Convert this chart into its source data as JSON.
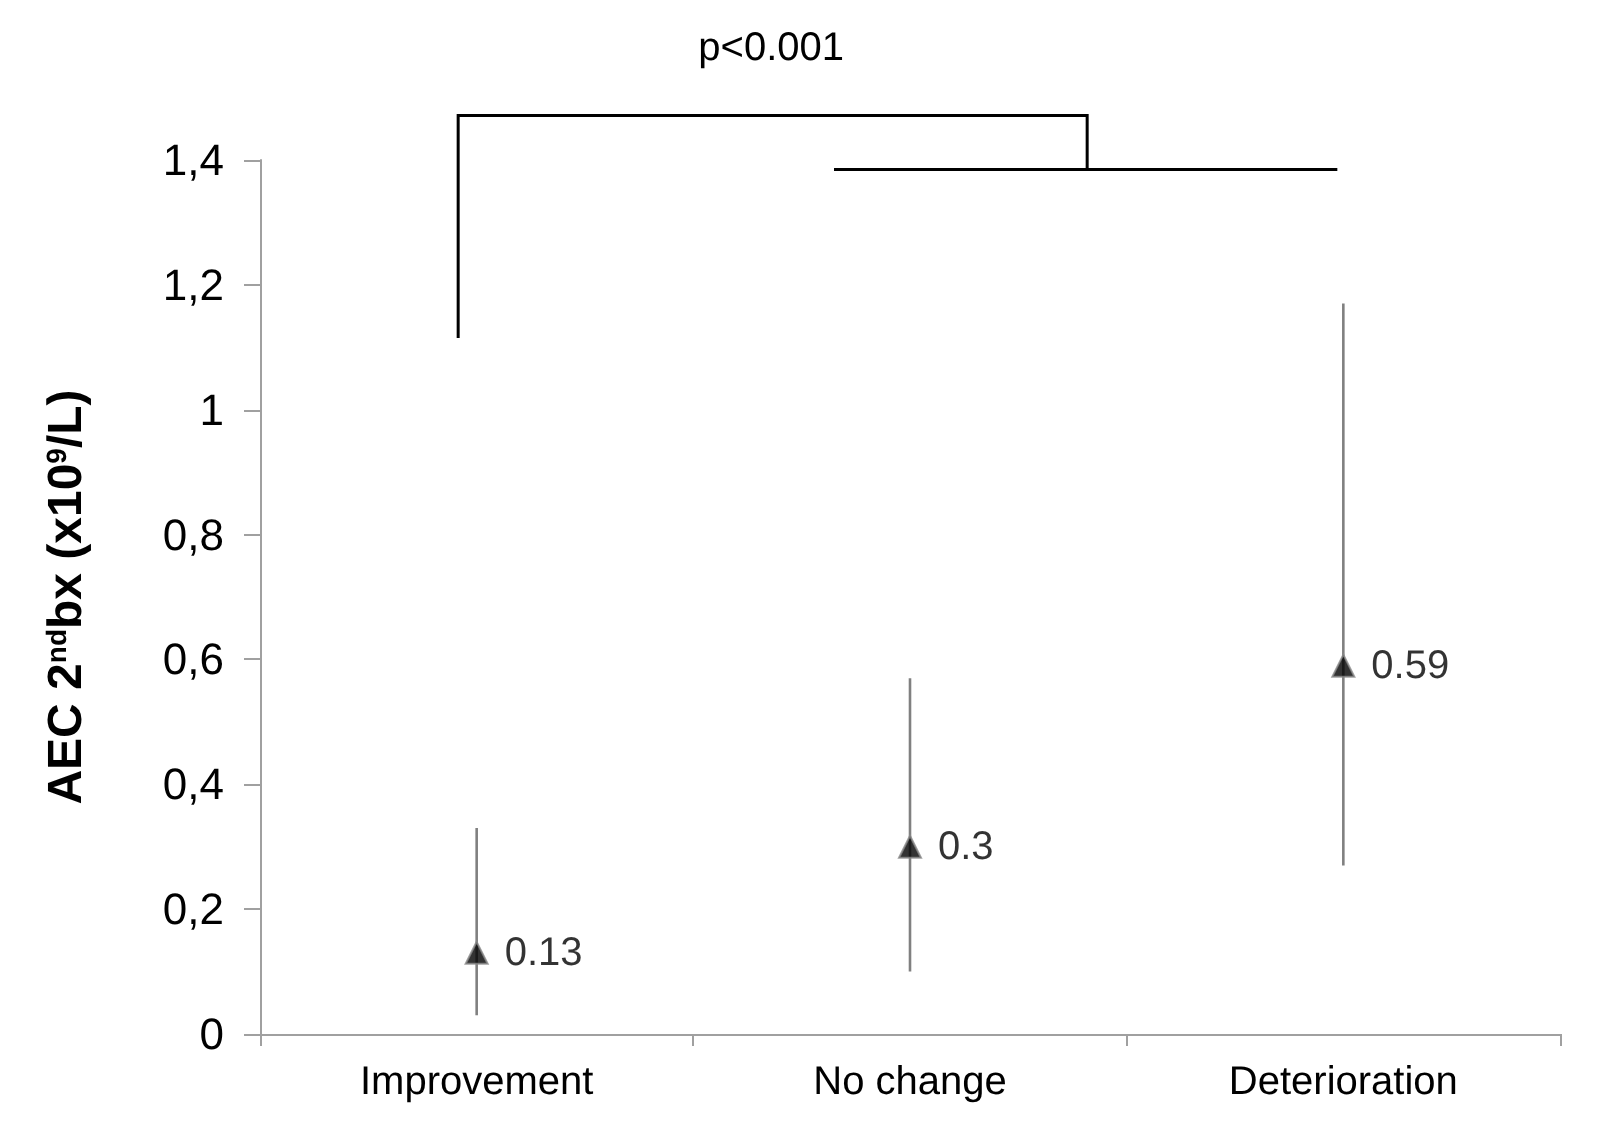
{
  "chart_data": {
    "type": "scatter",
    "ylabel": "AEC 2$^{nd}$bx (x10$^{9}$/L)",
    "categories": [
      "Improvement",
      "No change",
      "Deterioration"
    ],
    "values": [
      0.13,
      0.3,
      0.59
    ],
    "color": "#000000",
    "errors": [
      [
        0.03,
        0.33
      ],
      [
        0.1,
        0.57
      ],
      [
        0.27,
        1.17
      ]
    ],
    "ylim": [
      0,
      1.4
    ],
    "yticks": [
      0,
      {
        "value": 0.2,
        "label": "0,2"
      },
      {
        "value": 0.4,
        "label": "0,4"
      },
      {
        "value": 0.6,
        "label": "0,6"
      },
      {
        "value": 0.8,
        "label": "0,8"
      },
      1,
      {
        "value": 1.2,
        "label": "1,2"
      },
      {
        "value": 1.4,
        "label": "1,4"
      }
    ],
    "marker": "triangle",
    "data_labels": true,
    "grid": false,
    "annotations": [
      "p<0.001"
    ]
  }
}
